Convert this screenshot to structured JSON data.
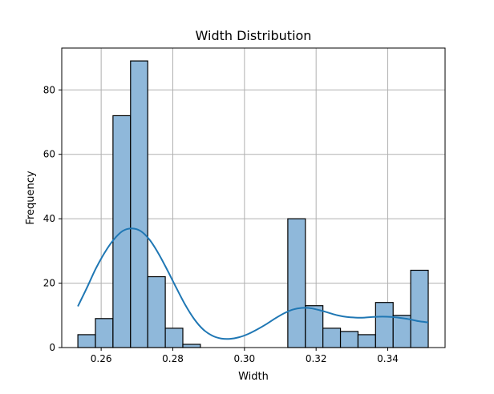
{
  "chart_data": {
    "type": "histogram",
    "title": "Width Distribution",
    "xlabel": "Width",
    "ylabel": "Frequency",
    "xlim": [
      0.249,
      0.356
    ],
    "ylim": [
      0,
      93
    ],
    "grid": true,
    "x_ticks": [
      {
        "value": 0.26,
        "label": "0.26"
      },
      {
        "value": 0.28,
        "label": "0.28"
      },
      {
        "value": 0.3,
        "label": "0.30"
      },
      {
        "value": 0.32,
        "label": "0.32"
      },
      {
        "value": 0.34,
        "label": "0.34"
      }
    ],
    "y_ticks": [
      {
        "value": 0,
        "label": "0"
      },
      {
        "value": 20,
        "label": "20"
      },
      {
        "value": 40,
        "label": "40"
      },
      {
        "value": 60,
        "label": "60"
      },
      {
        "value": 80,
        "label": "80"
      }
    ],
    "bin_edges": [
      0.2535,
      0.2584,
      0.2633,
      0.2682,
      0.273,
      0.2779,
      0.2828,
      0.2877,
      0.2926,
      0.2975,
      0.3024,
      0.3073,
      0.3121,
      0.317,
      0.3219,
      0.3268,
      0.3317,
      0.3366,
      0.3415,
      0.3464,
      0.3513
    ],
    "counts": [
      4,
      9,
      72,
      89,
      22,
      6,
      1,
      0,
      0,
      0,
      0,
      0,
      40,
      13,
      6,
      5,
      4,
      14,
      10,
      24
    ],
    "kde": {
      "x": [
        0.2535,
        0.256,
        0.2585,
        0.261,
        0.2635,
        0.266,
        0.2685,
        0.271,
        0.2735,
        0.276,
        0.2785,
        0.281,
        0.2835,
        0.286,
        0.2885,
        0.291,
        0.2935,
        0.296,
        0.2985,
        0.301,
        0.3035,
        0.306,
        0.3085,
        0.311,
        0.3135,
        0.316,
        0.3185,
        0.321,
        0.3235,
        0.326,
        0.3285,
        0.331,
        0.3335,
        0.336,
        0.3385,
        0.341,
        0.3435,
        0.346,
        0.3485,
        0.3513
      ],
      "y": [
        12.8,
        18.5,
        24.5,
        29.5,
        33.5,
        36.2,
        37.0,
        36.2,
        33.5,
        29.2,
        24.0,
        18.5,
        13.2,
        8.8,
        5.6,
        3.7,
        2.8,
        2.7,
        3.2,
        4.2,
        5.6,
        7.2,
        9.0,
        10.6,
        11.8,
        12.3,
        12.2,
        11.6,
        10.8,
        10.0,
        9.5,
        9.3,
        9.3,
        9.5,
        9.6,
        9.5,
        9.2,
        8.8,
        8.2,
        7.8
      ]
    },
    "colors": {
      "bar_fill": "#8fb8da",
      "bar_edge": "#000000",
      "kde_line": "#1f77b4",
      "grid": "#b0b0b0"
    }
  }
}
